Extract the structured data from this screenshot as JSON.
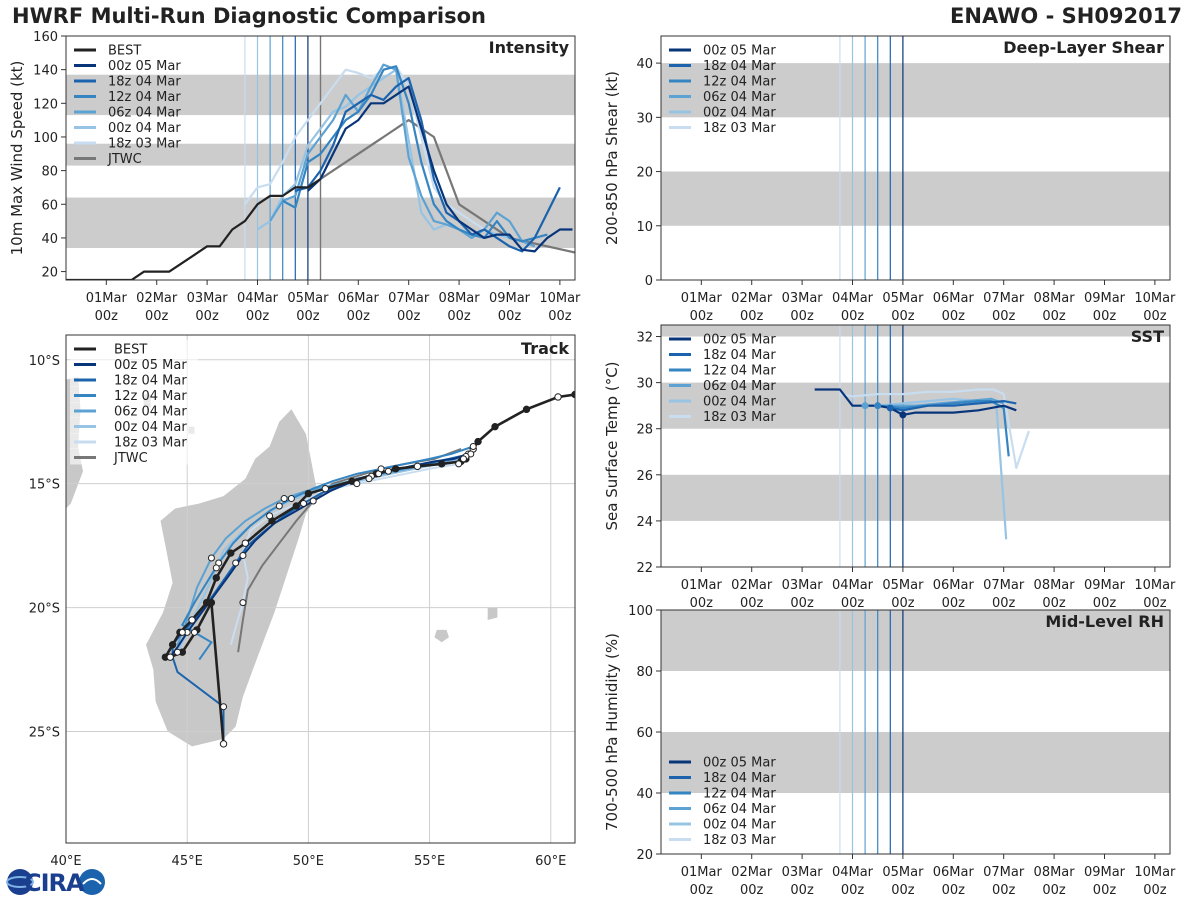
{
  "header": {
    "title": "HWRF Multi-Run Diagnostic Comparison",
    "storm": "ENAWO - SH092017"
  },
  "logo": {
    "text": "CIRA"
  },
  "colors": {
    "best": "#222222",
    "jtwc": "#777777",
    "band": "#cccccc",
    "runs": [
      "#08357a",
      "#1c63ae",
      "#3585c2",
      "#5ca2d3",
      "#97c4e4",
      "#c9ddf0"
    ]
  },
  "time_axis": {
    "ticks": [
      "01Mar",
      "02Mar",
      "03Mar",
      "04Mar",
      "05Mar",
      "06Mar",
      "07Mar",
      "08Mar",
      "09Mar",
      "10Mar"
    ],
    "hour_label": "00z",
    "init_lines": [
      "18z 03 Mar",
      "00z 04 Mar",
      "06z 04 Mar",
      "12z 04 Mar",
      "18z 04 Mar",
      "00z 05 Mar"
    ]
  },
  "legend_runs": [
    "00z 05 Mar",
    "18z 04 Mar",
    "12z 04 Mar",
    "06z 04 Mar",
    "00z 04 Mar",
    "18z 03 Mar"
  ],
  "chart_data": [
    {
      "id": "intensity",
      "type": "line",
      "title": "Intensity",
      "ylabel": "10m Max Wind Speed (kt)",
      "xlabel": "",
      "ylim": [
        15,
        160
      ],
      "yticks": [
        20,
        40,
        60,
        80,
        100,
        120,
        140,
        160
      ],
      "bands": [
        [
          34,
          64
        ],
        [
          83,
          96
        ],
        [
          113,
          137
        ]
      ],
      "legend": [
        "BEST",
        "00z 05 Mar",
        "18z 04 Mar",
        "12z 04 Mar",
        "06z 04 Mar",
        "00z 04 Mar",
        "18z 03 Mar",
        "JTWC"
      ],
      "series": [
        {
          "name": "BEST",
          "x": [
            -0.5,
            -0.25,
            0,
            0.25,
            0.5,
            0.75,
            1,
            1.25,
            1.5,
            1.75,
            2,
            2.25,
            2.5,
            2.75,
            3,
            3.25,
            3.5,
            3.75,
            4,
            4.25,
            4.5,
            4.75,
            5,
            5.25
          ],
          "y": [
            15,
            20,
            15,
            15,
            15,
            15,
            15,
            15,
            15,
            20,
            20,
            20,
            25,
            30,
            35,
            35,
            45,
            50,
            60,
            65,
            65,
            70,
            70,
            75
          ]
        },
        {
          "name": "00z 05 Mar",
          "x": [
            5,
            5.25,
            5.5,
            5.75,
            6,
            6.25,
            6.5,
            6.75,
            7,
            7.25,
            7.5,
            7.75,
            8,
            8.25,
            8.5,
            8.75,
            9,
            9.25,
            9.5,
            9.75,
            10,
            10.25
          ],
          "y": [
            68,
            75,
            90,
            105,
            110,
            120,
            120,
            125,
            130,
            105,
            80,
            60,
            50,
            45,
            40,
            42,
            42,
            33,
            32,
            40,
            45,
            45
          ]
        },
        {
          "name": "18z 04 Mar",
          "x": [
            4.75,
            5,
            5.25,
            5.5,
            5.75,
            6,
            6.25,
            6.5,
            6.75,
            7,
            7.25,
            7.5,
            7.75,
            8,
            8.25,
            8.5,
            8.75,
            9,
            9.25,
            9.5,
            9.75,
            10
          ],
          "y": [
            68,
            70,
            80,
            95,
            115,
            120,
            125,
            122,
            130,
            135,
            110,
            75,
            55,
            50,
            42,
            45,
            40,
            35,
            32,
            40,
            55,
            70
          ]
        },
        {
          "name": "12z 04 Mar",
          "x": [
            4.5,
            4.75,
            5,
            5.25,
            5.5,
            5.75,
            6,
            6.25,
            6.5,
            6.75,
            7,
            7.25,
            7.5,
            7.75,
            8,
            8.25,
            8.5,
            8.75,
            9,
            9.25,
            9.5,
            9.75
          ],
          "y": [
            62,
            58,
            85,
            90,
            100,
            110,
            115,
            125,
            140,
            142,
            120,
            85,
            60,
            50,
            45,
            42,
            40,
            50,
            40,
            38,
            40,
            42
          ]
        },
        {
          "name": "06z 04 Mar",
          "x": [
            4.25,
            4.5,
            4.75,
            5,
            5.25,
            5.5,
            5.75,
            6,
            6.25,
            6.5,
            6.75,
            7,
            7.25,
            7.5,
            7.75,
            8,
            8.25,
            8.5,
            8.75,
            9,
            9.25,
            9.5
          ],
          "y": [
            50,
            62,
            65,
            90,
            100,
            110,
            125,
            115,
            130,
            143,
            140,
            88,
            65,
            50,
            48,
            45,
            40,
            45,
            55,
            50,
            38,
            35
          ]
        },
        {
          "name": "00z 04 Mar",
          "x": [
            4,
            4.25,
            4.5,
            4.75,
            5,
            5.25,
            5.5,
            5.75,
            6,
            6.25,
            6.5,
            6.75,
            7,
            7.25,
            7.5,
            7.75,
            8,
            8.25,
            8.5,
            8.75,
            9,
            9.25
          ],
          "y": [
            45,
            50,
            65,
            72,
            95,
            105,
            115,
            118,
            125,
            130,
            135,
            140,
            98,
            55,
            45,
            48,
            45,
            40,
            45,
            42,
            40,
            38
          ]
        },
        {
          "name": "18z 03 Mar",
          "x": [
            3.75,
            4,
            4.25,
            4.5,
            4.75,
            5,
            5.25,
            5.5,
            5.75,
            6,
            6.25,
            6.5,
            6.75,
            7,
            7.25,
            7.5,
            7.75,
            8,
            8.25,
            8.5,
            8.75,
            9
          ],
          "y": [
            60,
            70,
            72,
            85,
            100,
            110,
            120,
            130,
            140,
            138,
            135,
            140,
            142,
            130,
            100,
            70,
            60,
            55,
            50,
            45,
            42,
            40
          ]
        },
        {
          "name": "JTWC",
          "x": [
            5.25,
            5.5,
            6,
            6.5,
            7,
            7.5,
            8,
            8.5,
            9,
            10.5
          ],
          "y": [
            75,
            80,
            90,
            100,
            110,
            100,
            60,
            50,
            40,
            30
          ]
        }
      ]
    },
    {
      "id": "shear",
      "type": "line",
      "title": "Deep-Layer Shear",
      "ylabel": "200-850 hPa Shear (kt)",
      "xlabel": "",
      "ylim": [
        0,
        45
      ],
      "yticks": [
        0,
        10,
        20,
        30,
        40
      ],
      "bands": [
        [
          10,
          20
        ],
        [
          30,
          40
        ]
      ],
      "legend": [
        "00z 05 Mar",
        "18z 04 Mar",
        "12z 04 Mar",
        "06z 04 Mar",
        "00z 04 Mar",
        "18z 03 Mar"
      ],
      "series": []
    },
    {
      "id": "sst",
      "type": "line",
      "title": "SST",
      "ylabel": "Sea Surface Temp (°C)",
      "xlabel": "",
      "ylim": [
        22,
        32.5
      ],
      "yticks": [
        22,
        24,
        26,
        28,
        30,
        32
      ],
      "bands": [
        [
          24,
          26
        ],
        [
          28,
          30
        ],
        [
          32,
          32.5
        ]
      ],
      "legend": [
        "00z 05 Mar",
        "18z 04 Mar",
        "12z 04 Mar",
        "06z 04 Mar",
        "00z 04 Mar",
        "18z 03 Mar"
      ],
      "series": [
        {
          "name": "00z 05 Mar",
          "x": [
            3.25,
            3.5,
            3.75,
            4,
            4.25,
            4.5,
            4.75,
            5,
            5.25,
            5.5,
            6,
            6.5,
            7,
            7.25
          ],
          "y": [
            29.7,
            29.7,
            29.7,
            29.0,
            29.0,
            29.0,
            28.9,
            28.6,
            28.7,
            28.7,
            28.7,
            28.8,
            29.0,
            28.8
          ]
        },
        {
          "name": "18z 04 Mar",
          "x": [
            4.75,
            5,
            5.5,
            6,
            6.5,
            7,
            7.25
          ],
          "y": [
            28.9,
            28.8,
            29.0,
            29.0,
            29.1,
            29.2,
            29.1
          ]
        },
        {
          "name": "12z 04 Mar",
          "x": [
            4.5,
            5,
            5.5,
            6,
            6.5,
            6.75,
            7,
            7.1
          ],
          "y": [
            29.0,
            28.9,
            29.0,
            29.1,
            29.2,
            29.2,
            28.9,
            26.8
          ]
        },
        {
          "name": "06z 04 Mar",
          "x": [
            4.25,
            4.75,
            5.25,
            5.75,
            6.25,
            6.75,
            7
          ],
          "y": [
            29.0,
            29.0,
            29.0,
            29.1,
            29.2,
            29.3,
            29.1
          ]
        },
        {
          "name": "00z 04 Mar",
          "x": [
            4,
            4.5,
            5,
            5.5,
            6,
            6.5,
            6.85,
            7.05
          ],
          "y": [
            29.0,
            29.0,
            29.1,
            29.2,
            29.3,
            29.2,
            29.2,
            23.2
          ]
        },
        {
          "name": "18z 03 Mar",
          "x": [
            3.75,
            4,
            4.5,
            5,
            5.5,
            6,
            6.5,
            6.8,
            7.0,
            7.25,
            7.5
          ],
          "y": [
            29.5,
            29.4,
            29.5,
            29.5,
            29.6,
            29.6,
            29.7,
            29.7,
            29.5,
            26.3,
            27.9
          ]
        }
      ]
    },
    {
      "id": "rh",
      "type": "line",
      "title": "Mid-Level RH",
      "ylabel": "700-500 hPa Humidity (%)",
      "xlabel": "",
      "ylim": [
        20,
        100
      ],
      "yticks": [
        20,
        40,
        60,
        80,
        100
      ],
      "bands": [
        [
          40,
          60
        ],
        [
          80,
          100
        ]
      ],
      "legend": [
        "00z 05 Mar",
        "18z 04 Mar",
        "12z 04 Mar",
        "06z 04 Mar",
        "00z 04 Mar",
        "18z 03 Mar"
      ],
      "series": []
    },
    {
      "id": "track",
      "type": "line",
      "title": "Track",
      "ylabel": "",
      "xlabel": "",
      "xlim": [
        40,
        61
      ],
      "ylim": [
        -29.5,
        -9
      ],
      "xticks": [
        40,
        45,
        50,
        55,
        60
      ],
      "yticks": [
        -10,
        -15,
        -20,
        -25
      ],
      "xticklabels": [
        "40°E",
        "45°E",
        "50°E",
        "55°E",
        "60°E"
      ],
      "yticklabels": [
        "10°S",
        "15°S",
        "20°S",
        "25°S"
      ],
      "legend": [
        "BEST",
        "00z 05 Mar",
        "18z 04 Mar",
        "12z 04 Mar",
        "06z 04 Mar",
        "00z 04 Mar",
        "18z 03 Mar",
        "JTWC"
      ],
      "series": [
        {
          "name": "BEST",
          "lon": [
            61.0,
            60.3,
            59.0,
            57.7,
            57.0,
            56.8,
            56.5,
            56.3,
            55.5,
            54.5,
            53.6,
            52.8,
            51.8,
            50.7,
            50.0,
            49.5,
            48.5,
            47.4,
            46.8,
            46.2,
            45.8,
            45.2,
            44.7,
            44.4,
            44.1,
            44.3,
            44.8,
            45.4,
            46.0,
            46.5
          ],
          "lat": [
            -11.4,
            -11.5,
            -12.0,
            -12.7,
            -13.3,
            -13.6,
            -14.0,
            -14.1,
            -14.2,
            -14.3,
            -14.4,
            -14.6,
            -14.9,
            -15.2,
            -15.4,
            -15.9,
            -16.5,
            -17.4,
            -17.8,
            -18.8,
            -19.8,
            -20.5,
            -21.0,
            -21.5,
            -22.0,
            -22.0,
            -21.8,
            -20.9,
            -19.8,
            -25.5
          ]
        },
        {
          "name": "00z 05 Mar",
          "lon": [
            56.6,
            56.0,
            55.2,
            54.2,
            53.3,
            52.5,
            51.6,
            50.9,
            50.2,
            49.5,
            48.6,
            47.8,
            47.3,
            46.8,
            46.2,
            45.6,
            45.0,
            44.6,
            44.3
          ],
          "lat": [
            -13.8,
            -14.0,
            -14.1,
            -14.3,
            -14.5,
            -14.7,
            -15.0,
            -15.3,
            -15.7,
            -16.1,
            -16.6,
            -17.3,
            -17.9,
            -18.6,
            -19.4,
            -20.2,
            -21.0,
            -21.6,
            -22.0
          ]
        },
        {
          "name": "18z 04 Mar",
          "lon": [
            56.7,
            55.8,
            54.8,
            53.8,
            52.9,
            52.0,
            51.2,
            50.5,
            49.8,
            49.0,
            48.2,
            47.5,
            47.0,
            46.5,
            46.0,
            45.4,
            44.8,
            44.4,
            44.4,
            44.6,
            46.5,
            46.5
          ],
          "lat": [
            -13.8,
            -14.0,
            -14.2,
            -14.4,
            -14.6,
            -14.8,
            -15.1,
            -15.4,
            -15.8,
            -16.3,
            -16.9,
            -17.5,
            -18.2,
            -18.9,
            -19.6,
            -20.4,
            -21.0,
            -21.5,
            -22.0,
            -22.6,
            -24.0,
            -25.5
          ]
        },
        {
          "name": "12z 04 Mar",
          "lon": [
            56.8,
            55.9,
            55.0,
            54.0,
            53.0,
            52.0,
            51.0,
            50.2,
            49.3,
            48.4,
            47.6,
            46.9,
            46.3,
            45.8,
            45.3,
            44.8,
            45.3,
            46.0,
            45.5
          ],
          "lat": [
            -13.5,
            -13.8,
            -14.0,
            -14.2,
            -14.4,
            -14.6,
            -14.9,
            -15.2,
            -15.6,
            -16.1,
            -16.7,
            -17.4,
            -18.2,
            -19.0,
            -19.8,
            -20.7,
            -21.0,
            -21.4,
            -22.1
          ]
        },
        {
          "name": "06z 04 Mar",
          "lon": [
            56.5,
            55.6,
            54.6,
            53.6,
            52.6,
            51.7,
            50.8,
            49.9,
            49.0,
            48.2,
            47.4,
            46.6,
            46.0,
            45.4,
            45.0,
            44.6
          ],
          "lat": [
            -13.9,
            -14.1,
            -14.3,
            -14.5,
            -14.7,
            -14.9,
            -15.1,
            -15.3,
            -15.6,
            -16.0,
            -16.5,
            -17.2,
            -18.0,
            -19.2,
            -20.5,
            -21.5
          ]
        },
        {
          "name": "00z 04 Mar",
          "lon": [
            56.4,
            55.4,
            54.4,
            53.4,
            52.5,
            51.6,
            50.6,
            49.7,
            48.8,
            48.0,
            47.2,
            46.5,
            46.2,
            45.8,
            45.3,
            44.9,
            44.6
          ],
          "lat": [
            -14.0,
            -14.2,
            -14.4,
            -14.6,
            -14.8,
            -15.0,
            -15.2,
            -15.5,
            -15.9,
            -16.4,
            -17.0,
            -17.7,
            -18.4,
            -19.3,
            -20.3,
            -21.2,
            -21.8
          ]
        },
        {
          "name": "18z 03 Mar",
          "lon": [
            56.2,
            55.0,
            54.0,
            53.0,
            52.0,
            51.0,
            50.2,
            49.3,
            48.4,
            47.6,
            47.3,
            47.5,
            47.3,
            47.0,
            46.8
          ],
          "lat": [
            -14.2,
            -14.4,
            -14.6,
            -14.8,
            -15.0,
            -15.2,
            -15.5,
            -15.9,
            -16.3,
            -16.9,
            -17.8,
            -18.8,
            -19.8,
            -20.8,
            -21.5
          ]
        },
        {
          "name": "JTWC",
          "lon": [
            56.3,
            55.2,
            54.0,
            53.0,
            52.0,
            51.0,
            50.2,
            49.5,
            48.8,
            48.1,
            47.5,
            47.3,
            47.1
          ],
          "lat": [
            -13.6,
            -14.0,
            -14.2,
            -14.4,
            -14.7,
            -15.0,
            -15.7,
            -16.5,
            -17.4,
            -18.3,
            -19.3,
            -20.5,
            -21.8
          ]
        }
      ]
    }
  ]
}
